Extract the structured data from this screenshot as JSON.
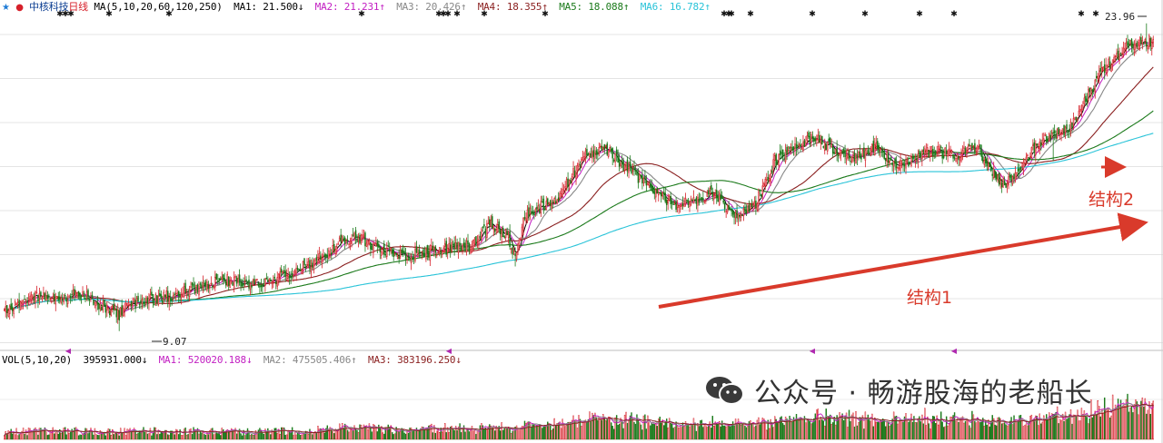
{
  "header": {
    "star_icon": "star-icon",
    "stock_name": "中核科技",
    "period": "日线",
    "ma_params": "MA(5,10,20,60,120,250)",
    "ma_values": [
      {
        "label": "MA1: 21.500↓",
        "color": "#000000"
      },
      {
        "label": "MA2: 21.231↑",
        "color": "#c21fc2"
      },
      {
        "label": "MA3: 20.426↑",
        "color": "#888888"
      },
      {
        "label": "MA4: 18.355↑",
        "color": "#8a1f1f"
      },
      {
        "label": "MA5: 18.088↑",
        "color": "#1b7a1b"
      },
      {
        "label": "MA6: 16.782↑",
        "color": "#29c3d8"
      }
    ]
  },
  "volume_header": {
    "params": "VOL(5,10,20)",
    "value": "395931.000↓",
    "ma_values": [
      {
        "label": "MA1: 520020.188↓",
        "color": "#c21fc2"
      },
      {
        "label": "MA2: 475505.406↑",
        "color": "#888888"
      },
      {
        "label": "MA3: 383196.250↓",
        "color": "#8a1f1f"
      }
    ]
  },
  "annotations": {
    "high_label": "23.96",
    "low_label": "9.07",
    "structure1": "结构1",
    "structure2": "结构2"
  },
  "watermark": {
    "text": "公众号 · 畅游股海的老船长",
    "icon": "wechat-icon"
  },
  "colors": {
    "up": "#d6202a",
    "down": "#1b7a1b",
    "arrow": "#d93a2b",
    "ma1": "#000000",
    "ma2": "#c21fc2",
    "ma3": "#888888",
    "ma4": "#8a1f1f",
    "ma5": "#1b7a1b",
    "ma6": "#29c3d8"
  },
  "chart_data": {
    "type": "candlestick",
    "title": "中核科技 日线",
    "y_range": [
      8.4,
      24.3
    ],
    "high": 23.96,
    "low": 9.07,
    "price_anchors": [
      [
        0,
        10.1
      ],
      [
        20,
        10.8
      ],
      [
        40,
        10.5
      ],
      [
        55,
        10.9
      ],
      [
        70,
        10.4
      ],
      [
        85,
        9.9
      ],
      [
        95,
        10.4
      ],
      [
        110,
        10.6
      ],
      [
        130,
        10.9
      ],
      [
        160,
        11.6
      ],
      [
        190,
        11.3
      ],
      [
        210,
        11.9
      ],
      [
        230,
        12.4
      ],
      [
        250,
        13.5
      ],
      [
        262,
        13.6
      ],
      [
        280,
        13.0
      ],
      [
        300,
        12.7
      ],
      [
        320,
        13.0
      ],
      [
        345,
        13.2
      ],
      [
        360,
        14.3
      ],
      [
        372,
        13.7
      ],
      [
        378,
        12.5
      ],
      [
        385,
        14.6
      ],
      [
        410,
        15.6
      ],
      [
        430,
        17.6
      ],
      [
        445,
        17.9
      ],
      [
        470,
        16.4
      ],
      [
        495,
        15.2
      ],
      [
        510,
        15.4
      ],
      [
        525,
        15.8
      ],
      [
        540,
        14.6
      ],
      [
        555,
        15.1
      ],
      [
        570,
        17.3
      ],
      [
        600,
        18.5
      ],
      [
        625,
        17.3
      ],
      [
        645,
        18.0
      ],
      [
        660,
        17.0
      ],
      [
        685,
        17.8
      ],
      [
        705,
        17.6
      ],
      [
        720,
        18.0
      ],
      [
        728,
        17.1
      ],
      [
        740,
        16.1
      ],
      [
        765,
        18.2
      ],
      [
        790,
        19.0
      ],
      [
        810,
        21.5
      ],
      [
        832,
        23.0
      ],
      [
        850,
        23.1
      ]
    ],
    "volume_range": [
      0,
      3000000
    ],
    "structures": [
      {
        "name": "结构1",
        "from_index": 378,
        "to_index": 850,
        "direction": "up"
      },
      {
        "name": "结构2",
        "from_index": 780,
        "to_index": 825,
        "direction": "up"
      }
    ]
  }
}
